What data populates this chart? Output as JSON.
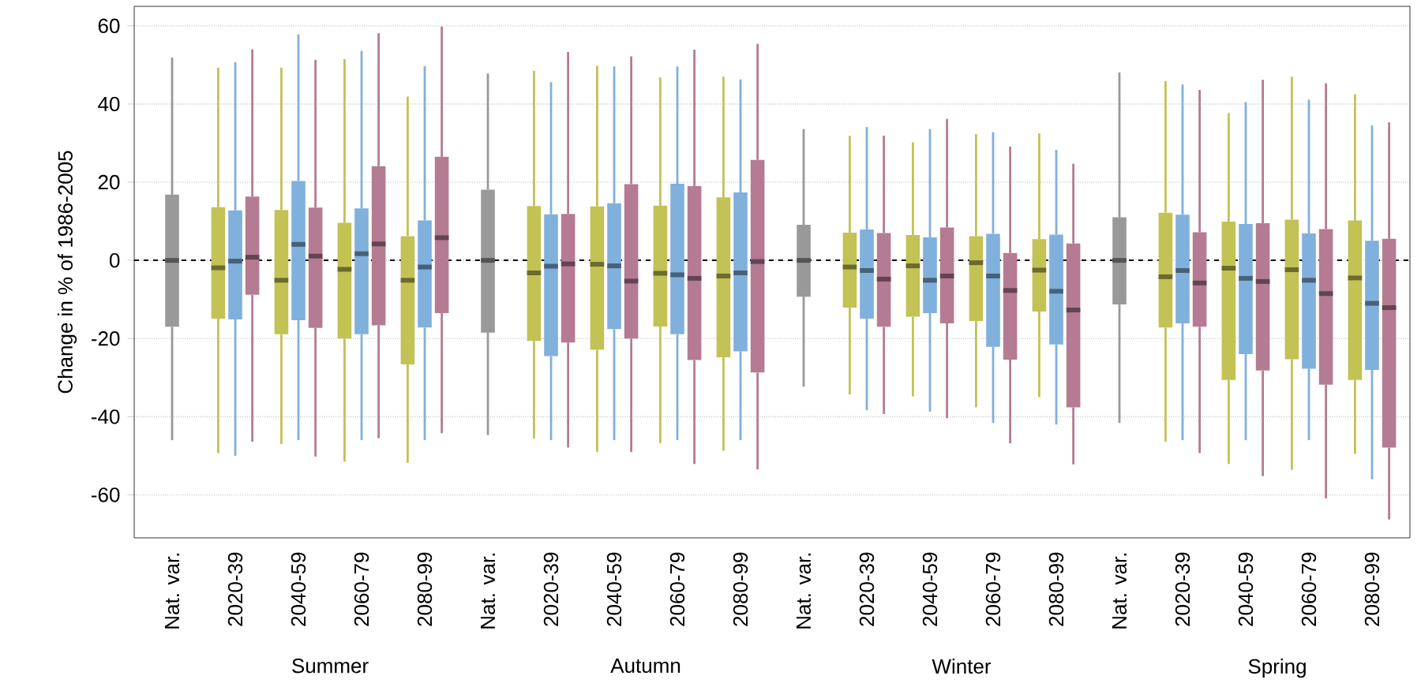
{
  "chart_data": {
    "type": "box",
    "ylabel": "Change in % of 1986-2005",
    "categories": [
      "Nat. var.",
      "2020-39",
      "2040-59",
      "2060-79",
      "2080-99",
      "Nat. var.",
      "2020-39",
      "2040-59",
      "2060-79",
      "2080-99",
      "Nat. var.",
      "2020-39",
      "2040-59",
      "2060-79",
      "2080-99",
      "Nat. var.",
      "2020-39",
      "2040-59",
      "2060-79",
      "2080-99"
    ],
    "series": [
      {
        "color": "#999999",
        "boxes": [
          {
            "low": -46,
            "q1": -17,
            "median": 0,
            "q3": 16.8,
            "high": 51.9
          },
          null,
          null,
          null,
          null,
          {
            "low": -44.7,
            "q1": -18.5,
            "median": 0,
            "q3": 18.1,
            "high": 47.8
          },
          null,
          null,
          null,
          null,
          {
            "low": -32.3,
            "q1": -9.3,
            "median": 0,
            "q3": 9.1,
            "high": 33.6
          },
          null,
          null,
          null,
          null,
          {
            "low": -41.6,
            "q1": -11.3,
            "median": 0,
            "q3": 11,
            "high": 48.1
          },
          null,
          null,
          null,
          null
        ]
      },
      {
        "color": "#c2c255",
        "boxes": [
          null,
          {
            "low": -49.3,
            "q1": -14.9,
            "median": -1.9,
            "q3": 13.6,
            "high": 49.3
          },
          {
            "low": -47,
            "q1": -18.9,
            "median": -5.1,
            "q3": 12.9,
            "high": 49.3
          },
          {
            "low": -51.5,
            "q1": -20,
            "median": -2.3,
            "q3": 9.6,
            "high": 51.5
          },
          {
            "low": -51.8,
            "q1": -26.6,
            "median": -5.1,
            "q3": 6.2,
            "high": 41.9
          },
          null,
          {
            "low": -45.6,
            "q1": -20.6,
            "median": -3.2,
            "q3": 13.9,
            "high": 48.5
          },
          {
            "low": -49,
            "q1": -22.9,
            "median": -1,
            "q3": 13.8,
            "high": 49.8
          },
          {
            "low": -46.8,
            "q1": -16.9,
            "median": -3.3,
            "q3": 14,
            "high": 46.8
          },
          {
            "low": -48.7,
            "q1": -24.8,
            "median": -4,
            "q3": 16.1,
            "high": 47
          },
          null,
          {
            "low": -34.3,
            "q1": -12.1,
            "median": -1.7,
            "q3": 7.1,
            "high": 31.9
          },
          {
            "low": -34.8,
            "q1": -14.4,
            "median": -1.4,
            "q3": 6.5,
            "high": 30.2
          },
          {
            "low": -37.6,
            "q1": -15.5,
            "median": -0.6,
            "q3": 6.2,
            "high": 32.3
          },
          {
            "low": -35,
            "q1": -13.1,
            "median": -2.5,
            "q3": 5.4,
            "high": 32.5
          },
          null,
          {
            "low": -46.4,
            "q1": -17.2,
            "median": -4.2,
            "q3": 12.2,
            "high": 45.9
          },
          {
            "low": -52.1,
            "q1": -30.6,
            "median": -2,
            "q3": 9.9,
            "high": 37.7
          },
          {
            "low": -53.6,
            "q1": -25.3,
            "median": -2.4,
            "q3": 10.4,
            "high": 47
          },
          {
            "low": -49.5,
            "q1": -30.6,
            "median": -4.5,
            "q3": 10.2,
            "high": 42.5
          }
        ]
      },
      {
        "color": "#80b0dc",
        "boxes": [
          null,
          {
            "low": -50,
            "q1": -15.1,
            "median": -0.2,
            "q3": 12.8,
            "high": 50.7
          },
          {
            "low": -46,
            "q1": -15.3,
            "median": 4.1,
            "q3": 20.3,
            "high": 57.8
          },
          {
            "low": -46,
            "q1": -18.9,
            "median": 1.7,
            "q3": 13.3,
            "high": 53.6
          },
          {
            "low": -46,
            "q1": -17.2,
            "median": -1.7,
            "q3": 10.2,
            "high": 49.7
          },
          null,
          {
            "low": -46,
            "q1": -24.5,
            "median": -1.5,
            "q3": 11.8,
            "high": 45.6
          },
          {
            "low": -46,
            "q1": -17.6,
            "median": -1.4,
            "q3": 14.6,
            "high": 49.6
          },
          {
            "low": -46,
            "q1": -18.9,
            "median": -3.7,
            "q3": 19.6,
            "high": 49.6
          },
          {
            "low": -46,
            "q1": -23.3,
            "median": -3.2,
            "q3": 17.4,
            "high": 46.3
          },
          null,
          {
            "low": -38.3,
            "q1": -14.9,
            "median": -2.6,
            "q3": 7.9,
            "high": 34.1
          },
          {
            "low": -38.7,
            "q1": -13.5,
            "median": -5.1,
            "q3": 5.9,
            "high": 33.6
          },
          {
            "low": -41.6,
            "q1": -22.1,
            "median": -4,
            "q3": 6.8,
            "high": 32.8
          },
          {
            "low": -42,
            "q1": -21.5,
            "median": -7.9,
            "q3": 6.6,
            "high": 28.3
          },
          null,
          {
            "low": -46,
            "q1": -16.1,
            "median": -2.6,
            "q3": 11.7,
            "high": 45
          },
          {
            "low": -46,
            "q1": -24,
            "median": -4.6,
            "q3": 9.3,
            "high": 40.5
          },
          {
            "low": -46,
            "q1": -27.7,
            "median": -5.1,
            "q3": 6.9,
            "high": 41.1
          },
          {
            "low": -56,
            "q1": -28,
            "median": -11,
            "q3": 5,
            "high": 34.5
          }
        ]
      },
      {
        "color": "#b57b93",
        "boxes": [
          null,
          {
            "low": -46.4,
            "q1": -8.8,
            "median": 0.8,
            "q3": 16.3,
            "high": 54
          },
          {
            "low": -50.2,
            "q1": -17.3,
            "median": 1.1,
            "q3": 13.5,
            "high": 51.3
          },
          {
            "low": -45.5,
            "q1": -16.6,
            "median": 4.2,
            "q3": 24.1,
            "high": 58.1
          },
          {
            "low": -44.2,
            "q1": -13.5,
            "median": 5.8,
            "q3": 26.5,
            "high": 59.8
          },
          null,
          {
            "low": -47.9,
            "q1": -21,
            "median": -0.9,
            "q3": 11.9,
            "high": 53.3
          },
          {
            "low": -49,
            "q1": -20,
            "median": -5.3,
            "q3": 19.5,
            "high": 52.2
          },
          {
            "low": -52.1,
            "q1": -25.5,
            "median": -4.6,
            "q3": 19,
            "high": 53.9
          },
          {
            "low": -53.5,
            "q1": -28.7,
            "median": -0.3,
            "q3": 25.7,
            "high": 55.4
          },
          null,
          {
            "low": -39.3,
            "q1": -17,
            "median": -4.8,
            "q3": 7,
            "high": 31.9
          },
          {
            "low": -40.4,
            "q1": -16.1,
            "median": -4,
            "q3": 8.4,
            "high": 36.2
          },
          {
            "low": -46.8,
            "q1": -25.4,
            "median": -7.7,
            "q3": 1.9,
            "high": 29.1
          },
          {
            "low": -52.2,
            "q1": -37.6,
            "median": -12.7,
            "q3": 4.3,
            "high": 24.7
          },
          null,
          {
            "low": -49.3,
            "q1": -17,
            "median": -5.8,
            "q3": 7.2,
            "high": 43.6
          },
          {
            "low": -55.2,
            "q1": -28.2,
            "median": -5.4,
            "q3": 9.5,
            "high": 46.2
          },
          {
            "low": -60.9,
            "q1": -31.8,
            "median": -8.5,
            "q3": 8,
            "high": 45.3
          },
          {
            "low": -66.3,
            "q1": -47.9,
            "median": -12.1,
            "q3": 5.5,
            "high": 35.3
          }
        ]
      }
    ],
    "ylim": [
      -71,
      65
    ],
    "yticks": [
      -60,
      -40,
      -20,
      0,
      20,
      40,
      60
    ],
    "grid": "y",
    "ref_lines": [
      {
        "axis": "y",
        "value": 0,
        "line_style": "dashed",
        "color": "#000000"
      }
    ],
    "annotations": [
      "Summer",
      "Autumn",
      "Winter",
      "Spring"
    ]
  }
}
